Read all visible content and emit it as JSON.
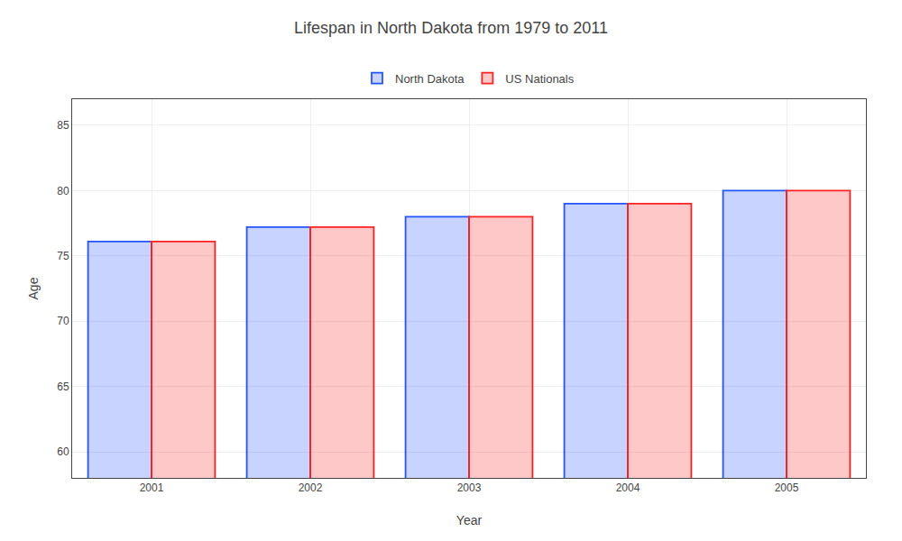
{
  "chart_data": {
    "type": "bar",
    "title": "Lifespan in North Dakota from 1979 to 2011",
    "xlabel": "Year",
    "ylabel": "Age",
    "categories": [
      "2001",
      "2002",
      "2003",
      "2004",
      "2005"
    ],
    "series": [
      {
        "name": "North Dakota",
        "color": "#2255ff",
        "values": [
          76.1,
          77.2,
          78.0,
          79.0,
          80.0
        ]
      },
      {
        "name": "US Nationals",
        "color": "#ff2222",
        "values": [
          76.1,
          77.2,
          78.0,
          79.0,
          80.0
        ]
      }
    ],
    "ylim": [
      58,
      87
    ],
    "yticks": [
      60,
      65,
      70,
      75,
      80,
      85
    ],
    "grid": true,
    "legend": "top"
  }
}
